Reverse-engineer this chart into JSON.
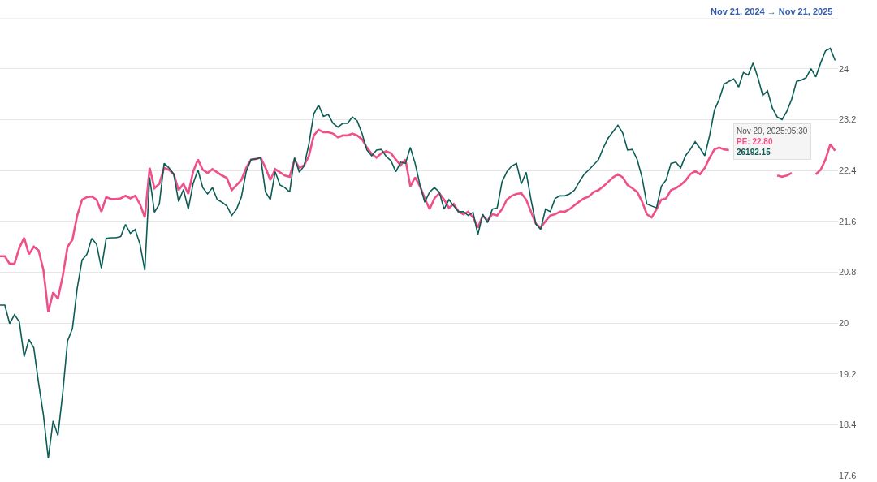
{
  "chart_data": {
    "type": "line",
    "categories": [
      null,
      null,
      null,
      null,
      null,
      null,
      null,
      null,
      null,
      null,
      null,
      null,
      null,
      null,
      null,
      null,
      null,
      null,
      null,
      null,
      null,
      null,
      null,
      null,
      null,
      null,
      null,
      null,
      null,
      null,
      null,
      null,
      null,
      null,
      null,
      null,
      null,
      null,
      null,
      null,
      null,
      null,
      null,
      null,
      null,
      null,
      null,
      null,
      null,
      null,
      null,
      null,
      null,
      null,
      null,
      null,
      null,
      null,
      null,
      null,
      null,
      null,
      null,
      null,
      null,
      null,
      null,
      null,
      null,
      null,
      null,
      null,
      null,
      null,
      null,
      null,
      null,
      null,
      null,
      null,
      null,
      null,
      null,
      null,
      null,
      null,
      null,
      null,
      null,
      null,
      null,
      null,
      null,
      null,
      null,
      null,
      null,
      null,
      null,
      null,
      null,
      null,
      null,
      null,
      null,
      null,
      null,
      null,
      null,
      null,
      null,
      null,
      null,
      null,
      null,
      null,
      null,
      null,
      null,
      null,
      null,
      null,
      null,
      null,
      null,
      null,
      null,
      null,
      null,
      null,
      null,
      null,
      null,
      null,
      null,
      null,
      null,
      null,
      null,
      null,
      null,
      null,
      null,
      null,
      null,
      null,
      null,
      null,
      null,
      null,
      null,
      null,
      null,
      null,
      null,
      null,
      null,
      null,
      null,
      null,
      null,
      null,
      null,
      null,
      null,
      null,
      null,
      null,
      null,
      null,
      null,
      null,
      null,
      null
    ],
    "series": [
      {
        "color": "#f0508a",
        "values": [
          21.05,
          21.05,
          20.93,
          20.93,
          21.18,
          21.34,
          21.08,
          21.2,
          21.14,
          20.83,
          20.17,
          20.48,
          20.38,
          20.74,
          21.2,
          21.31,
          21.69,
          21.94,
          21.98,
          21.99,
          21.94,
          21.75,
          21.98,
          21.95,
          21.95,
          21.96,
          22.0,
          21.96,
          22.0,
          21.87,
          21.66,
          22.44,
          22.12,
          22.19,
          22.44,
          22.41,
          22.34,
          22.09,
          22.19,
          22.03,
          22.38,
          22.57,
          22.41,
          22.36,
          22.42,
          22.37,
          22.32,
          22.28,
          22.09,
          22.17,
          22.25,
          22.44,
          22.57,
          22.58,
          22.6,
          22.44,
          22.25,
          22.42,
          22.37,
          22.32,
          22.3,
          22.57,
          22.44,
          22.48,
          22.63,
          22.95,
          23.04,
          23.0,
          23.0,
          22.98,
          22.92,
          22.95,
          22.95,
          22.98,
          22.95,
          22.89,
          22.76,
          22.66,
          22.6,
          22.67,
          22.7,
          22.67,
          22.57,
          22.48,
          22.57,
          22.15,
          22.29,
          22.15,
          21.96,
          21.79,
          21.96,
          22.04,
          21.94,
          21.81,
          21.87,
          21.75,
          21.71,
          21.75,
          21.66,
          21.5,
          21.69,
          21.61,
          21.71,
          21.69,
          21.79,
          21.94,
          22.0,
          22.03,
          22.04,
          21.94,
          21.75,
          21.56,
          21.5,
          21.6,
          21.69,
          21.71,
          21.75,
          21.75,
          21.79,
          21.85,
          21.91,
          21.96,
          21.99,
          22.06,
          22.09,
          22.15,
          22.22,
          22.29,
          22.34,
          22.29,
          22.17,
          22.12,
          22.06,
          21.91,
          21.71,
          21.66,
          21.79,
          21.94,
          21.96,
          22.09,
          22.12,
          22.17,
          22.24,
          22.34,
          22.39,
          22.34,
          22.44,
          22.6,
          22.73,
          22.76,
          22.73,
          22.72,
          null,
          null,
          null,
          null,
          null,
          null,
          null,
          null,
          null,
          22.32,
          22.3,
          22.32,
          22.36,
          null,
          null,
          null,
          null,
          22.34,
          22.41,
          22.57,
          22.81,
          22.71
        ]
      },
      {
        "color": "#0b5d56",
        "values": [
          20.28,
          20.28,
          19.99,
          20.13,
          20.02,
          19.47,
          19.74,
          19.61,
          19.05,
          18.55,
          17.87,
          18.46,
          18.23,
          18.9,
          19.72,
          19.91,
          20.55,
          20.99,
          21.08,
          21.33,
          21.24,
          20.86,
          21.33,
          21.34,
          21.34,
          21.36,
          21.55,
          21.41,
          21.47,
          21.24,
          20.83,
          22.29,
          21.74,
          21.87,
          22.51,
          22.44,
          22.34,
          21.91,
          22.1,
          21.79,
          22.19,
          22.41,
          22.13,
          22.03,
          22.13,
          21.94,
          21.9,
          21.84,
          21.69,
          21.79,
          21.98,
          22.38,
          22.57,
          22.58,
          22.6,
          22.06,
          21.94,
          22.38,
          22.17,
          22.13,
          22.06,
          22.6,
          22.37,
          22.47,
          22.82,
          23.29,
          23.43,
          23.25,
          23.28,
          23.14,
          23.08,
          23.14,
          23.14,
          23.24,
          23.18,
          22.98,
          22.72,
          22.63,
          22.72,
          22.73,
          22.62,
          22.55,
          22.38,
          22.53,
          22.51,
          22.76,
          22.51,
          22.17,
          21.9,
          22.06,
          22.13,
          22.06,
          21.79,
          21.94,
          21.84,
          21.75,
          21.75,
          21.69,
          21.74,
          21.39,
          21.71,
          21.58,
          21.79,
          21.81,
          22.22,
          22.38,
          22.47,
          22.51,
          22.19,
          22.37,
          21.94,
          21.56,
          21.47,
          21.79,
          21.75,
          21.96,
          22.0,
          22.0,
          22.03,
          22.09,
          22.22,
          22.34,
          22.41,
          22.49,
          22.57,
          22.76,
          22.91,
          23.01,
          23.11,
          22.99,
          22.72,
          22.73,
          22.57,
          22.29,
          21.87,
          21.84,
          21.81,
          22.15,
          22.25,
          22.51,
          22.53,
          22.44,
          22.63,
          22.73,
          22.85,
          22.75,
          22.63,
          22.95,
          23.35,
          23.52,
          23.76,
          23.8,
          23.84,
          23.71,
          23.94,
          23.9,
          24.09,
          23.86,
          23.58,
          23.65,
          23.38,
          23.24,
          23.2,
          23.33,
          23.52,
          23.8,
          23.82,
          23.86,
          24.0,
          23.87,
          24.09,
          24.28,
          24.32,
          24.13
        ]
      }
    ],
    "ylim": [
      17.6,
      24.8
    ],
    "yticks": [
      17.6,
      18.4,
      19.2,
      20,
      20.8,
      21.6,
      22.4,
      23.2,
      24
    ],
    "grid": "y",
    "marker": "none",
    "line_style": "solid",
    "annotations": [
      "Nov 21, 2024 → Nov 21, 2025",
      "Nov 20, 2025:05:30",
      "PE: 22.80",
      "26192.15"
    ]
  }
}
